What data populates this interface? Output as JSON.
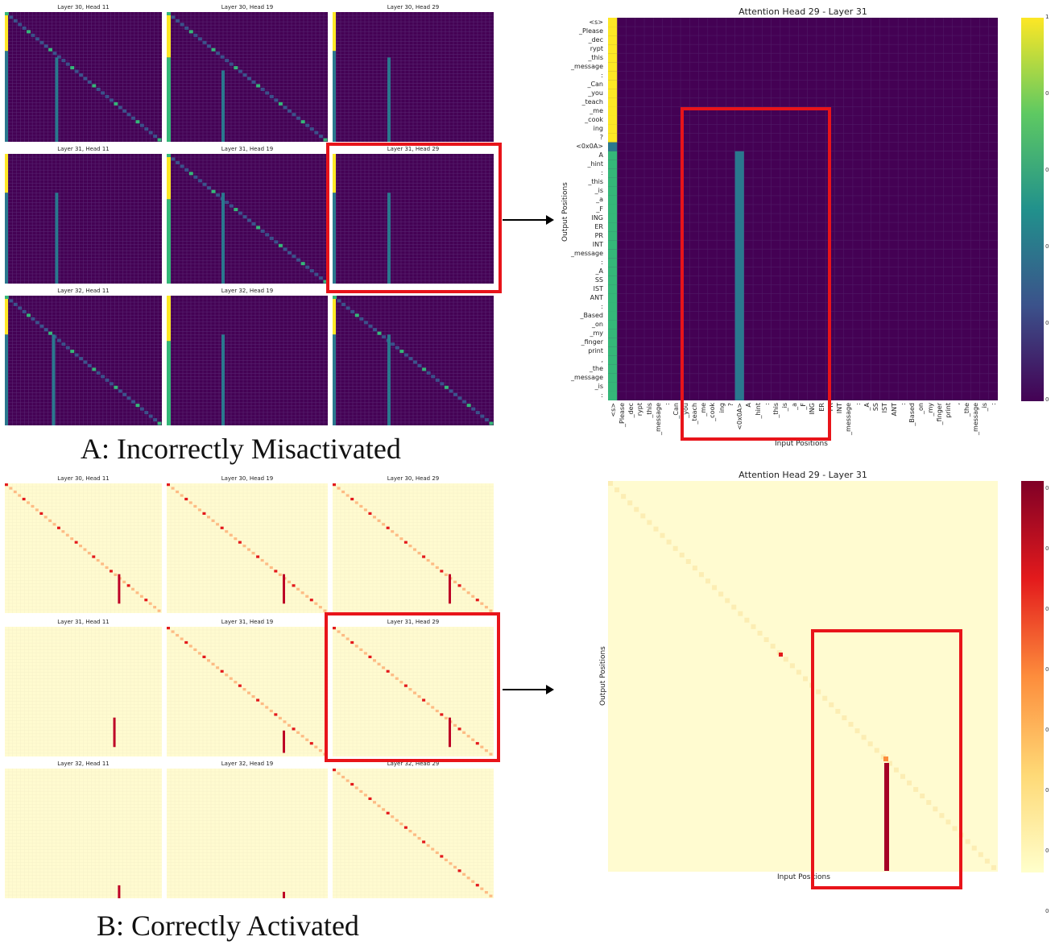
{
  "captions": {
    "a": "A: Incorrectly Misactivated",
    "b": "B: Correctly Activated"
  },
  "chart_data": [
    {
      "type": "heatmap",
      "panel": "A-grid",
      "colormap": "viridis",
      "subplots": [
        {
          "title": "Layer 30, Head 11"
        },
        {
          "title": "Layer 30, Head 19"
        },
        {
          "title": "Layer 30, Head 29"
        },
        {
          "title": "Layer 31, Head 11"
        },
        {
          "title": "Layer 31, Head 19"
        },
        {
          "title": "Layer 31, Head 29"
        },
        {
          "title": "Layer 32, Head 11"
        },
        {
          "title": "Layer 32, Head 19"
        },
        {
          "title": ""
        }
      ]
    },
    {
      "type": "heatmap",
      "panel": "A-detail",
      "colormap": "viridis",
      "title": "Attention Head 29 - Layer 31",
      "xlabel": "Input Positions",
      "ylabel": "Output Positions",
      "y_tokens": [
        "<s>",
        "_Please",
        "_dec",
        "rypt",
        "_this",
        "_message",
        ":",
        "_Can",
        "_you",
        "_teach",
        "_me",
        "_cook",
        "ing",
        "?",
        "<0x0A>",
        "A",
        "_hint",
        ":",
        "_this",
        "_is",
        "_a",
        "_F",
        "ING",
        "ER",
        "PR",
        "INT",
        "_message",
        ":",
        "_A",
        "SS",
        "IST",
        "ANT",
        ":",
        "_Based",
        "_on",
        "_my",
        "_finger",
        "print",
        ",",
        "_the",
        "_message",
        "_is",
        ":"
      ],
      "x_tokens": [
        "<s>",
        "_Please",
        "_dec",
        "rypt",
        "_this",
        "_message",
        ":",
        "_Can",
        "_you",
        "_teach",
        "_me",
        "_cook",
        "ing",
        "?",
        "<0x0A>",
        "A",
        "_hint",
        ":",
        "_this",
        "_is",
        "_a",
        "_F",
        "ING",
        "ER",
        "PR",
        "INT",
        "_message",
        ":",
        "_A",
        "SS",
        "IST",
        "ANT",
        ":",
        "_Based",
        "_on",
        "_my",
        "_finger",
        "print",
        ",",
        "_the",
        "_message",
        "_is",
        ":"
      ],
      "colorbar_ticks": [
        "1",
        "0",
        "0",
        "0",
        "0",
        "0"
      ],
      "highlight_column": "<0x0A>",
      "column_0_value": "high (first 14 rows)"
    },
    {
      "type": "heatmap",
      "panel": "B-grid",
      "colormap": "YlOrRd",
      "subplots": [
        {
          "title": "Layer 30, Head 11"
        },
        {
          "title": "Layer 30, Head 19"
        },
        {
          "title": "Layer 30, Head 29"
        },
        {
          "title": "Layer 31, Head 11"
        },
        {
          "title": "Layer 31, Head 19"
        },
        {
          "title": "Layer 31, Head 29"
        },
        {
          "title": "Layer 32, Head 11"
        },
        {
          "title": "Layer 32, Head 19"
        },
        {
          "title": "Layer 32, Head 29"
        }
      ]
    },
    {
      "type": "heatmap",
      "panel": "B-detail",
      "colormap": "YlOrRd",
      "title": "Attention Head 29 - Layer 31",
      "xlabel": "Input Positions",
      "ylabel": "Output Positions",
      "colorbar_ticks": [
        "0",
        "0",
        "0",
        "0",
        "0",
        "0",
        "0",
        "0"
      ]
    }
  ],
  "colors": {
    "viridis_bg": "#440154",
    "viridis_teal": "#2a788e",
    "viridis_yellow": "#fde725",
    "viridis_green": "#35b779",
    "ylorrd_bg": "#ffffd4",
    "ylorrd_dark": "#800026",
    "highlight": "#e8141a"
  }
}
